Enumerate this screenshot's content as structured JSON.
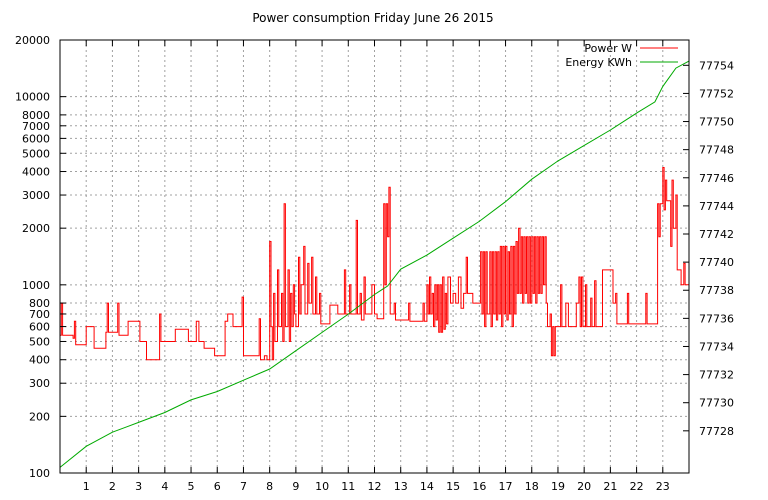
{
  "chart_data": {
    "type": "line",
    "title": "Power consumption Friday June 26 2015",
    "x": {
      "range": [
        0,
        24
      ],
      "ticks": [
        1,
        2,
        3,
        4,
        5,
        6,
        7,
        8,
        9,
        10,
        11,
        12,
        13,
        14,
        15,
        16,
        17,
        18,
        19,
        20,
        21,
        22,
        23
      ]
    },
    "y_left": {
      "scale": "log",
      "range": [
        100,
        20000
      ],
      "ticks": [
        100,
        200,
        300,
        400,
        500,
        600,
        700,
        800,
        1000,
        2000,
        3000,
        4000,
        5000,
        6000,
        7000,
        8000,
        10000,
        20000
      ]
    },
    "y_right": {
      "scale": "linear",
      "range": [
        77725.0,
        77755.8
      ],
      "ticks": [
        77728,
        77730,
        77732,
        77734,
        77736,
        77738,
        77740,
        77742,
        77744,
        77746,
        77748,
        77750,
        77752,
        77754
      ]
    },
    "grid": true,
    "legend_position": "top-right",
    "series": [
      {
        "name": "Power W",
        "axis": "left",
        "color": "#ff0000",
        "points": [
          [
            0.0,
            540
          ],
          [
            0.05,
            800
          ],
          [
            0.1,
            540
          ],
          [
            0.5,
            520
          ],
          [
            0.55,
            640
          ],
          [
            0.6,
            480
          ],
          [
            0.9,
            480
          ],
          [
            1.0,
            600
          ],
          [
            1.3,
            460
          ],
          [
            1.6,
            460
          ],
          [
            1.75,
            560
          ],
          [
            1.8,
            800
          ],
          [
            1.85,
            560
          ],
          [
            2.1,
            560
          ],
          [
            2.2,
            800
          ],
          [
            2.25,
            540
          ],
          [
            2.5,
            540
          ],
          [
            2.6,
            640
          ],
          [
            2.8,
            640
          ],
          [
            3.0,
            640
          ],
          [
            3.05,
            500
          ],
          [
            3.2,
            500
          ],
          [
            3.3,
            400
          ],
          [
            3.6,
            400
          ],
          [
            3.8,
            700
          ],
          [
            3.85,
            500
          ],
          [
            4.3,
            500
          ],
          [
            4.4,
            580
          ],
          [
            4.8,
            580
          ],
          [
            4.9,
            500
          ],
          [
            5.1,
            500
          ],
          [
            5.2,
            640
          ],
          [
            5.3,
            500
          ],
          [
            5.5,
            460
          ],
          [
            5.8,
            460
          ],
          [
            5.9,
            420
          ],
          [
            6.1,
            420
          ],
          [
            6.3,
            640
          ],
          [
            6.4,
            700
          ],
          [
            6.6,
            600
          ],
          [
            6.8,
            600
          ],
          [
            6.95,
            860
          ],
          [
            7.0,
            420
          ],
          [
            7.2,
            420
          ],
          [
            7.5,
            420
          ],
          [
            7.6,
            660
          ],
          [
            7.65,
            400
          ],
          [
            7.8,
            420
          ],
          [
            7.9,
            400
          ],
          [
            8.0,
            1700
          ],
          [
            8.05,
            600
          ],
          [
            8.1,
            400
          ],
          [
            8.15,
            900
          ],
          [
            8.2,
            500
          ],
          [
            8.3,
            1200
          ],
          [
            8.35,
            600
          ],
          [
            8.45,
            900
          ],
          [
            8.5,
            500
          ],
          [
            8.55,
            2700
          ],
          [
            8.6,
            600
          ],
          [
            8.7,
            1200
          ],
          [
            8.75,
            500
          ],
          [
            8.8,
            900
          ],
          [
            8.85,
            600
          ],
          [
            8.9,
            1000
          ],
          [
            8.95,
            700
          ],
          [
            9.0,
            600
          ],
          [
            9.1,
            1400
          ],
          [
            9.15,
            700
          ],
          [
            9.2,
            1000
          ],
          [
            9.3,
            1600
          ],
          [
            9.35,
            700
          ],
          [
            9.45,
            1300
          ],
          [
            9.5,
            800
          ],
          [
            9.6,
            1400
          ],
          [
            9.65,
            700
          ],
          [
            9.75,
            1100
          ],
          [
            9.8,
            700
          ],
          [
            9.9,
            900
          ],
          [
            9.95,
            620
          ],
          [
            10.2,
            620
          ],
          [
            10.3,
            780
          ],
          [
            10.5,
            780
          ],
          [
            10.6,
            700
          ],
          [
            10.8,
            700
          ],
          [
            10.85,
            1200
          ],
          [
            10.9,
            700
          ],
          [
            11.0,
            700
          ],
          [
            11.05,
            1000
          ],
          [
            11.1,
            700
          ],
          [
            11.2,
            700
          ],
          [
            11.3,
            2200
          ],
          [
            11.35,
            700
          ],
          [
            11.45,
            900
          ],
          [
            11.5,
            650
          ],
          [
            11.6,
            1100
          ],
          [
            11.65,
            700
          ],
          [
            11.8,
            700
          ],
          [
            11.9,
            1000
          ],
          [
            12.0,
            700
          ],
          [
            12.1,
            660
          ],
          [
            12.3,
            660
          ],
          [
            12.35,
            2700
          ],
          [
            12.4,
            1000
          ],
          [
            12.45,
            2700
          ],
          [
            12.5,
            1800
          ],
          [
            12.55,
            3300
          ],
          [
            12.6,
            700
          ],
          [
            12.7,
            700
          ],
          [
            12.75,
            800
          ],
          [
            12.8,
            650
          ],
          [
            13.0,
            650
          ],
          [
            13.2,
            650
          ],
          [
            13.3,
            800
          ],
          [
            13.35,
            640
          ],
          [
            13.6,
            640
          ],
          [
            13.8,
            640
          ],
          [
            13.85,
            800
          ],
          [
            13.9,
            640
          ],
          [
            14.0,
            1000
          ],
          [
            14.05,
            700
          ],
          [
            14.1,
            1100
          ],
          [
            14.15,
            700
          ],
          [
            14.2,
            900
          ],
          [
            14.25,
            600
          ],
          [
            14.3,
            1000
          ],
          [
            14.35,
            650
          ],
          [
            14.4,
            1000
          ],
          [
            14.45,
            560
          ],
          [
            14.5,
            1000
          ],
          [
            14.55,
            560
          ],
          [
            14.6,
            1100
          ],
          [
            14.65,
            580
          ],
          [
            14.7,
            900
          ],
          [
            14.75,
            620
          ],
          [
            14.8,
            1100
          ],
          [
            14.9,
            800
          ],
          [
            15.0,
            900
          ],
          [
            15.1,
            800
          ],
          [
            15.2,
            1100
          ],
          [
            15.3,
            750
          ],
          [
            15.4,
            900
          ],
          [
            15.5,
            1400
          ],
          [
            15.55,
            900
          ],
          [
            15.7,
            900
          ],
          [
            15.75,
            800
          ],
          [
            16.0,
            800
          ],
          [
            16.05,
            1500
          ],
          [
            16.1,
            700
          ],
          [
            16.15,
            1500
          ],
          [
            16.2,
            600
          ],
          [
            16.25,
            1500
          ],
          [
            16.3,
            700
          ],
          [
            16.4,
            1500
          ],
          [
            16.45,
            600
          ],
          [
            16.5,
            1500
          ],
          [
            16.55,
            700
          ],
          [
            16.6,
            1500
          ],
          [
            16.65,
            650
          ],
          [
            16.7,
            1500
          ],
          [
            16.75,
            700
          ],
          [
            16.8,
            1600
          ],
          [
            16.85,
            600
          ],
          [
            16.9,
            1600
          ],
          [
            16.95,
            700
          ],
          [
            17.0,
            1600
          ],
          [
            17.05,
            650
          ],
          [
            17.1,
            1500
          ],
          [
            17.15,
            700
          ],
          [
            17.2,
            1600
          ],
          [
            17.25,
            600
          ],
          [
            17.3,
            1600
          ],
          [
            17.35,
            700
          ],
          [
            17.4,
            1700
          ],
          [
            17.45,
            900
          ],
          [
            17.5,
            2000
          ],
          [
            17.55,
            900
          ],
          [
            17.6,
            1800
          ],
          [
            17.65,
            800
          ],
          [
            17.7,
            1800
          ],
          [
            17.75,
            900
          ],
          [
            17.8,
            1800
          ],
          [
            17.85,
            800
          ],
          [
            17.9,
            1800
          ],
          [
            17.95,
            800
          ],
          [
            18.0,
            1800
          ],
          [
            18.05,
            900
          ],
          [
            18.1,
            1800
          ],
          [
            18.15,
            800
          ],
          [
            18.2,
            1800
          ],
          [
            18.25,
            900
          ],
          [
            18.3,
            1800
          ],
          [
            18.35,
            900
          ],
          [
            18.4,
            1800
          ],
          [
            18.45,
            1000
          ],
          [
            18.5,
            1800
          ],
          [
            18.55,
            800
          ],
          [
            18.6,
            600
          ],
          [
            18.7,
            700
          ],
          [
            18.75,
            420
          ],
          [
            18.8,
            600
          ],
          [
            18.85,
            420
          ],
          [
            18.9,
            600
          ],
          [
            19.0,
            600
          ],
          [
            19.1,
            1000
          ],
          [
            19.15,
            600
          ],
          [
            19.25,
            600
          ],
          [
            19.3,
            800
          ],
          [
            19.4,
            600
          ],
          [
            19.6,
            600
          ],
          [
            19.7,
            800
          ],
          [
            19.8,
            1100
          ],
          [
            19.85,
            600
          ],
          [
            19.9,
            1100
          ],
          [
            19.95,
            600
          ],
          [
            20.0,
            600
          ],
          [
            20.05,
            1000
          ],
          [
            20.1,
            600
          ],
          [
            20.2,
            600
          ],
          [
            20.25,
            850
          ],
          [
            20.3,
            600
          ],
          [
            20.4,
            1050
          ],
          [
            20.45,
            600
          ],
          [
            20.6,
            600
          ],
          [
            20.7,
            1200
          ],
          [
            21.0,
            1200
          ],
          [
            21.1,
            800
          ],
          [
            21.2,
            900
          ],
          [
            21.25,
            620
          ],
          [
            21.6,
            620
          ],
          [
            21.65,
            900
          ],
          [
            21.7,
            620
          ],
          [
            22.3,
            620
          ],
          [
            22.35,
            900
          ],
          [
            22.4,
            620
          ],
          [
            22.75,
            620
          ],
          [
            22.8,
            2700
          ],
          [
            22.85,
            1800
          ],
          [
            22.9,
            2700
          ],
          [
            23.0,
            4200
          ],
          [
            23.05,
            2500
          ],
          [
            23.1,
            3600
          ],
          [
            23.15,
            2800
          ],
          [
            23.2,
            2800
          ],
          [
            23.3,
            1600
          ],
          [
            23.35,
            3600
          ],
          [
            23.4,
            2000
          ],
          [
            23.5,
            3000
          ],
          [
            23.55,
            1200
          ],
          [
            23.6,
            1200
          ],
          [
            23.7,
            1000
          ],
          [
            23.8,
            1300
          ],
          [
            23.85,
            1000
          ],
          [
            24.0,
            1000
          ]
        ]
      },
      {
        "name": "Energy KWh",
        "axis": "right",
        "color": "#00aa00",
        "points": [
          [
            0.0,
            77725.4
          ],
          [
            1.0,
            77726.9
          ],
          [
            2.0,
            77727.9
          ],
          [
            3.0,
            77728.6
          ],
          [
            4.0,
            77729.3
          ],
          [
            5.0,
            77730.2
          ],
          [
            6.0,
            77730.8
          ],
          [
            7.0,
            77731.6
          ],
          [
            8.0,
            77732.4
          ],
          [
            9.0,
            77733.7
          ],
          [
            10.0,
            77735.0
          ],
          [
            11.0,
            77736.3
          ],
          [
            12.0,
            77737.7
          ],
          [
            12.5,
            77738.3
          ],
          [
            13.0,
            77739.5
          ],
          [
            14.0,
            77740.5
          ],
          [
            15.0,
            77741.7
          ],
          [
            16.0,
            77742.9
          ],
          [
            17.0,
            77744.3
          ],
          [
            18.0,
            77745.9
          ],
          [
            19.0,
            77747.2
          ],
          [
            20.0,
            77748.3
          ],
          [
            21.0,
            77749.4
          ],
          [
            22.0,
            77750.6
          ],
          [
            22.7,
            77751.4
          ],
          [
            23.0,
            77752.5
          ],
          [
            23.5,
            77753.8
          ],
          [
            24.0,
            77754.3
          ]
        ]
      }
    ]
  }
}
